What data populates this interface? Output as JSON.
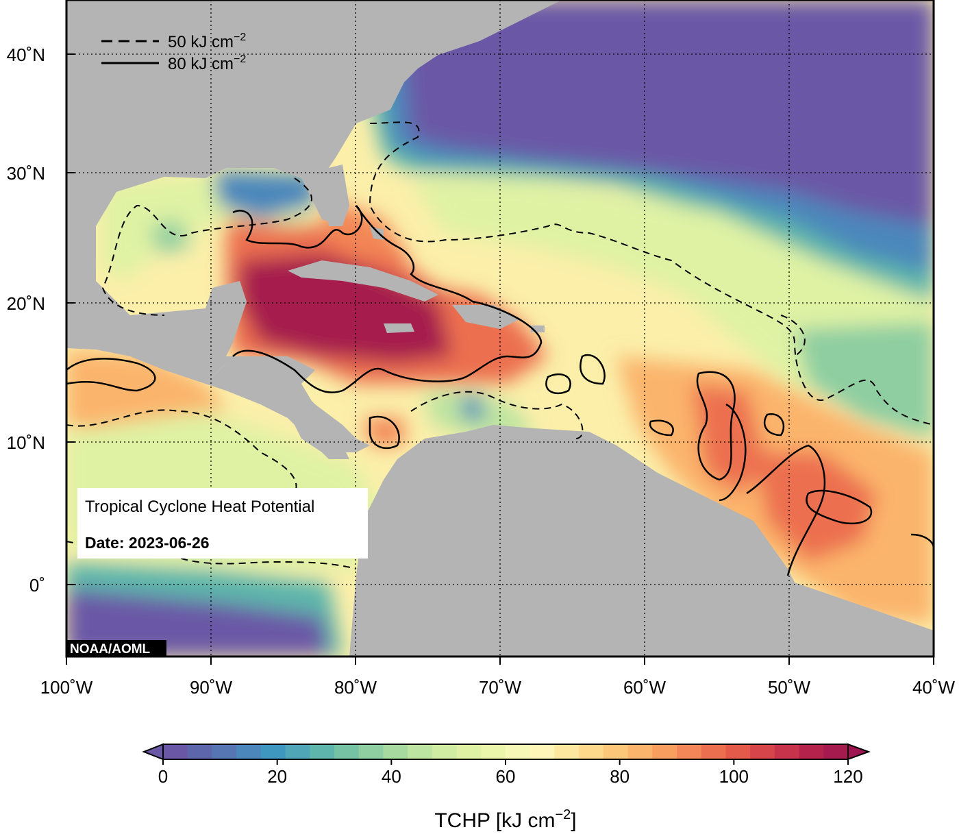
{
  "map": {
    "title": "Tropical Cyclone Heat Potential",
    "date_label": "Date: 2023-06-26",
    "credit": "NOAA/AOML",
    "legend": {
      "dashed": {
        "value": "50 kJ cm",
        "exp": "−2"
      },
      "solid": {
        "value": "80 kJ cm",
        "exp": "−2"
      }
    },
    "lon_labels": [
      "100˚W",
      "90˚W",
      "80˚W",
      "70˚W",
      "60˚W",
      "50˚W",
      "40˚W"
    ],
    "lat_labels": [
      "40˚N",
      "30˚N",
      "20˚N",
      "10˚N",
      "0˚"
    ],
    "colors": {
      "land": "#b4b4b4",
      "cold": "#6a58a6",
      "frame": "#000000"
    }
  },
  "colorbar": {
    "label_main": "TCHP [kJ cm",
    "label_exp": "−2",
    "label_end": "]",
    "range": [
      0,
      120
    ],
    "tick_values": [
      0,
      20,
      40,
      60,
      80,
      100,
      120
    ],
    "tick_labels": [
      "0",
      "20",
      "40",
      "60",
      "80",
      "100",
      "120"
    ],
    "colors": [
      "#6a58a6",
      "#5e66ab",
      "#5576b3",
      "#4b87bb",
      "#3e97bf",
      "#4ea6b6",
      "#5db5ab",
      "#75c2a4",
      "#8ecea1",
      "#a6da9f",
      "#bde4a0",
      "#cfeca2",
      "#dff2a4",
      "#ecf6aa",
      "#f6f9b6",
      "#fdf6b8",
      "#fde8a0",
      "#fdd98b",
      "#fdc77a",
      "#fbb46c",
      "#f89f60",
      "#f38757",
      "#ec6f4f",
      "#e35a4a",
      "#d64549",
      "#c7334b",
      "#b5234d",
      "#a51b4e"
    ],
    "under_color": "#6a58a6",
    "over_color": "#9e1450"
  }
}
